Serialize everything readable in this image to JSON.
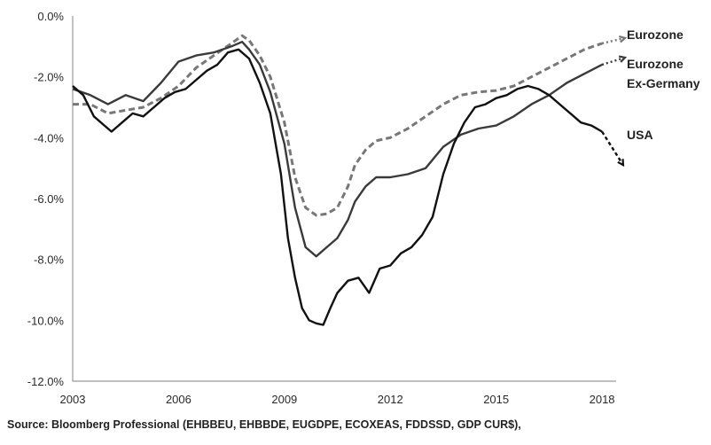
{
  "chart_data": {
    "type": "line",
    "title": "",
    "xlabel": "",
    "ylabel": "",
    "xlim": [
      2003,
      2018.4
    ],
    "ylim": [
      -12,
      0
    ],
    "x_ticks": [
      "2003",
      "2006",
      "2009",
      "2012",
      "2015",
      "2018"
    ],
    "y_ticks": [
      "0.0%",
      "-2.0%",
      "-4.0%",
      "-6.0%",
      "-8.0%",
      "-10.0%",
      "-12.0%"
    ],
    "grid": false,
    "legend": "inline-right",
    "series": [
      {
        "name": "Eurozone",
        "label_lines": [
          "Eurozone"
        ],
        "color": "#777777",
        "style": "dashed",
        "x": [
          2003,
          2003.5,
          2004,
          2004.5,
          2005,
          2005.5,
          2006,
          2006.5,
          2007,
          2007.5,
          2007.8,
          2008,
          2008.3,
          2008.6,
          2009,
          2009.3,
          2009.6,
          2009.9,
          2010.2,
          2010.5,
          2010.8,
          2011,
          2011.3,
          2011.6,
          2012,
          2012.5,
          2013,
          2013.5,
          2014,
          2014.5,
          2015,
          2015.5,
          2016,
          2016.5,
          2017,
          2017.5,
          2018
        ],
        "y": [
          -2.9,
          -2.9,
          -3.2,
          -3.1,
          -3.0,
          -2.7,
          -2.3,
          -1.7,
          -1.3,
          -0.9,
          -0.65,
          -0.8,
          -1.3,
          -2.0,
          -3.5,
          -5.3,
          -6.3,
          -6.55,
          -6.5,
          -6.3,
          -5.6,
          -4.9,
          -4.4,
          -4.1,
          -4.0,
          -3.7,
          -3.3,
          -2.9,
          -2.6,
          -2.5,
          -2.45,
          -2.3,
          -2.0,
          -1.7,
          -1.4,
          -1.1,
          -0.9
        ]
      },
      {
        "name": "Eurozone Ex-Germany",
        "label_lines": [
          "Eurozone",
          "Ex-Germany"
        ],
        "color": "#3a3a3a",
        "style": "solid",
        "x": [
          2003,
          2003.5,
          2004,
          2004.5,
          2005,
          2005.5,
          2006,
          2006.5,
          2007,
          2007.5,
          2007.8,
          2008,
          2008.3,
          2008.6,
          2009,
          2009.3,
          2009.6,
          2009.9,
          2010.2,
          2010.5,
          2010.8,
          2011,
          2011.3,
          2011.6,
          2012,
          2012.5,
          2013,
          2013.5,
          2014,
          2014.5,
          2015,
          2015.5,
          2016,
          2016.5,
          2017,
          2017.5,
          2018
        ],
        "y": [
          -2.4,
          -2.6,
          -2.9,
          -2.6,
          -2.8,
          -2.2,
          -1.5,
          -1.3,
          -1.2,
          -1.0,
          -0.85,
          -1.1,
          -1.6,
          -2.5,
          -4.2,
          -6.3,
          -7.6,
          -7.9,
          -7.6,
          -7.3,
          -6.7,
          -6.1,
          -5.6,
          -5.3,
          -5.3,
          -5.2,
          -5.0,
          -4.3,
          -3.9,
          -3.7,
          -3.6,
          -3.3,
          -2.9,
          -2.6,
          -2.2,
          -1.9,
          -1.6
        ]
      },
      {
        "name": "USA",
        "label_lines": [
          "USA"
        ],
        "color": "#111111",
        "style": "solid",
        "x": [
          2003,
          2003.3,
          2003.6,
          2003.9,
          2004.1,
          2004.4,
          2004.7,
          2005,
          2005.3,
          2005.6,
          2005.9,
          2006.2,
          2006.5,
          2006.8,
          2007.1,
          2007.4,
          2007.7,
          2008,
          2008.3,
          2008.6,
          2008.9,
          2009.1,
          2009.3,
          2009.5,
          2009.7,
          2009.9,
          2010.1,
          2010.3,
          2010.5,
          2010.8,
          2011.1,
          2011.4,
          2011.7,
          2012,
          2012.3,
          2012.6,
          2012.9,
          2013.2,
          2013.5,
          2013.8,
          2014.1,
          2014.4,
          2014.7,
          2015,
          2015.3,
          2015.6,
          2015.9,
          2016.2,
          2016.5,
          2016.8,
          2017.1,
          2017.4,
          2017.7,
          2018
        ],
        "y": [
          -2.3,
          -2.6,
          -3.3,
          -3.6,
          -3.8,
          -3.5,
          -3.2,
          -3.3,
          -3.0,
          -2.7,
          -2.5,
          -2.4,
          -2.1,
          -1.8,
          -1.6,
          -1.2,
          -1.1,
          -1.4,
          -2.2,
          -3.2,
          -5.2,
          -7.3,
          -8.6,
          -9.6,
          -10.0,
          -10.1,
          -10.15,
          -9.6,
          -9.1,
          -8.7,
          -8.6,
          -9.1,
          -8.3,
          -8.2,
          -7.8,
          -7.6,
          -7.2,
          -6.6,
          -5.2,
          -4.2,
          -3.5,
          -3.0,
          -2.9,
          -2.7,
          -2.6,
          -2.4,
          -2.3,
          -2.4,
          -2.6,
          -2.9,
          -3.2,
          -3.5,
          -3.6,
          -3.8
        ],
        "projection": {
          "x": [
            2018,
            2018.6
          ],
          "y": [
            -3.8,
            -4.9
          ]
        }
      }
    ],
    "source": "Source: Bloomberg Professional (EHBBEU, EHBBDE, EUGDPE, ECOXEAS, FDDSSD, GDP CUR$),"
  }
}
